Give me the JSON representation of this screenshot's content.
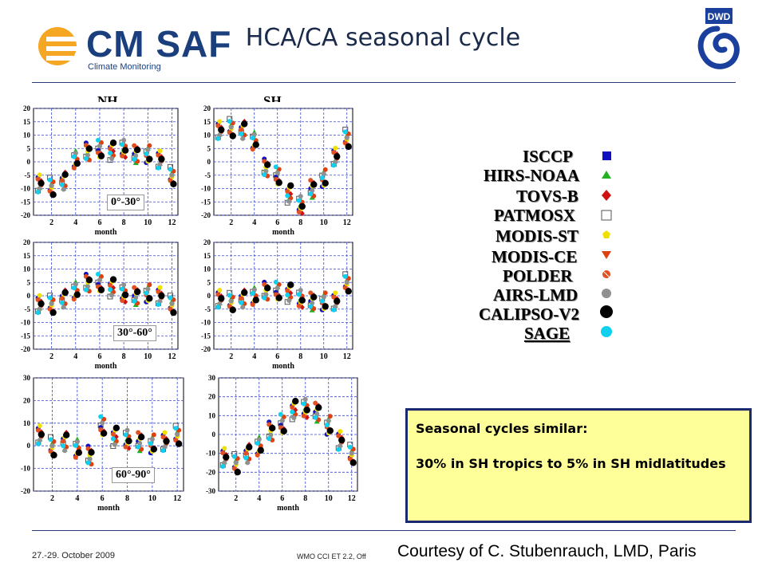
{
  "header": {
    "logo_text": "CM SAF",
    "logo_subtext": "Climate Monitoring",
    "title": "HCA/CA seasonal cycle",
    "dwd_logo_text": "DWD"
  },
  "columns": {
    "nh": "NH",
    "sh": "SH"
  },
  "bands": [
    "0°-30°",
    "30°-60°",
    "60°-90°"
  ],
  "axis_xlabel": "month",
  "legend": [
    {
      "name": "ISCCP",
      "color": "#1a1aa0",
      "symbol": "square",
      "symbol_color": "#1010c0"
    },
    {
      "name": "HIRS-NOAA",
      "color": "#2ec23a",
      "symbol": "triangle",
      "symbol_color": "#20b020"
    },
    {
      "name": "TOVS-B",
      "color": "#cc1414",
      "symbol": "diamond",
      "symbol_color": "#d01010"
    },
    {
      "name": "PATMOSX",
      "color": "#111111",
      "symbol": "open-square",
      "symbol_color": "#555555"
    },
    {
      "name": "MODIS-ST",
      "color": "#f2e600",
      "symbol": "pentagon",
      "symbol_color": "#f0e000"
    },
    {
      "name": "MODIS-CE",
      "color": "#f06a10",
      "symbol": "down-triangle",
      "symbol_color": "#e04010"
    },
    {
      "name": "POLDER",
      "color": "#e8501e",
      "symbol": "crossed-circle",
      "symbol_color": "#e05020"
    },
    {
      "name": "AIRS-LMD",
      "color": "#8a8a8a",
      "symbol": "circle",
      "symbol_color": "#909090"
    },
    {
      "name": "CALIPSO-V2",
      "color": "#000000",
      "symbol": "big-circle",
      "symbol_color": "#000000"
    },
    {
      "name": "SAGE",
      "color": "#18c8e6",
      "symbol": "cyan-circle",
      "symbol_color": "#10d0f0"
    }
  ],
  "chart_data": [
    {
      "type": "scatter",
      "panel": "NH 0°-30°",
      "xlabel": "month",
      "ylim": [
        -20,
        20
      ],
      "yticks": [
        -20,
        -15,
        -10,
        -5,
        0,
        5,
        10,
        15,
        20
      ],
      "xticks": [
        2,
        4,
        6,
        8,
        10,
        12
      ],
      "series": [
        {
          "x": [
            1,
            2,
            3,
            4,
            5,
            6,
            7,
            8,
            9,
            10,
            11,
            12
          ],
          "values": [
            -8,
            -9,
            -7,
            1,
            4,
            5,
            4,
            5,
            3,
            3,
            1,
            -5
          ]
        }
      ]
    },
    {
      "type": "scatter",
      "panel": "SH 0°-30°",
      "xlabel": "month",
      "ylim": [
        -20,
        20
      ],
      "yticks": [
        -20,
        -15,
        -10,
        -5,
        0,
        5,
        10,
        15,
        20
      ],
      "xticks": [
        2,
        4,
        6,
        8,
        10,
        12
      ],
      "series": [
        {
          "x": [
            1,
            2,
            3,
            4,
            5,
            6,
            7,
            8,
            9,
            10,
            11,
            12
          ],
          "values": [
            12,
            13,
            12,
            8,
            -2,
            -5,
            -12,
            -16,
            -10,
            -6,
            2,
            9
          ]
        }
      ]
    },
    {
      "type": "scatter",
      "panel": "NH 30°-60°",
      "xlabel": "month",
      "ylim": [
        -20,
        20
      ],
      "yticks": [
        -20,
        -15,
        -10,
        -5,
        0,
        5,
        10,
        15,
        20
      ],
      "xticks": [
        2,
        4,
        6,
        8,
        10,
        12
      ],
      "series": [
        {
          "x": [
            1,
            2,
            3,
            4,
            5,
            6,
            7,
            8,
            9,
            10,
            11,
            12
          ],
          "values": [
            -3,
            -3,
            -1,
            2,
            5,
            5,
            3,
            1,
            0,
            1,
            0,
            -3
          ]
        }
      ]
    },
    {
      "type": "scatter",
      "panel": "SH 30°-60°",
      "xlabel": "month",
      "ylim": [
        -20,
        20
      ],
      "yticks": [
        -20,
        -15,
        -10,
        -5,
        0,
        5,
        10,
        15,
        20
      ],
      "xticks": [
        2,
        4,
        6,
        8,
        10,
        12
      ],
      "series": [
        {
          "x": [
            1,
            2,
            3,
            4,
            5,
            6,
            7,
            8,
            9,
            10,
            11,
            12
          ],
          "values": [
            -1,
            -2,
            -1,
            0,
            2,
            2,
            1,
            -1,
            -2,
            -2,
            -2,
            5
          ]
        }
      ]
    },
    {
      "type": "scatter",
      "panel": "NH 60°-90°",
      "xlabel": "month",
      "ylim": [
        -20,
        30
      ],
      "yticks": [
        -20,
        -10,
        0,
        10,
        20,
        30
      ],
      "xticks": [
        2,
        4,
        6,
        8,
        10,
        12
      ],
      "series": [
        {
          "x": [
            1,
            2,
            3,
            4,
            5,
            6,
            7,
            8,
            9,
            10,
            11,
            12
          ],
          "values": [
            5,
            0,
            2,
            -1,
            -4,
            9,
            4,
            3,
            2,
            1,
            2,
            5
          ]
        }
      ]
    },
    {
      "type": "scatter",
      "panel": "SH 60°-90°",
      "xlabel": "month",
      "ylim": [
        -30,
        30
      ],
      "yticks": [
        -30,
        -20,
        -10,
        0,
        10,
        20,
        30
      ],
      "xticks": [
        2,
        4,
        6,
        8,
        10,
        12
      ],
      "series": [
        {
          "x": [
            1,
            2,
            3,
            4,
            5,
            6,
            7,
            8,
            9,
            10,
            11,
            12
          ],
          "values": [
            -12,
            -15,
            -10,
            -6,
            2,
            6,
            13,
            14,
            12,
            5,
            -3,
            -10
          ]
        }
      ]
    }
  ],
  "note": {
    "line1": "Seasonal cycles similar:",
    "line2": "30% in SH tropics to 5% in SH midlatitudes"
  },
  "footer": {
    "date": "27.-29. October 2009",
    "meeting": "WMO CCI ET 2.2, Off",
    "courtesy": "Courtesy of C. Stubenrauch, LMD, Paris"
  }
}
